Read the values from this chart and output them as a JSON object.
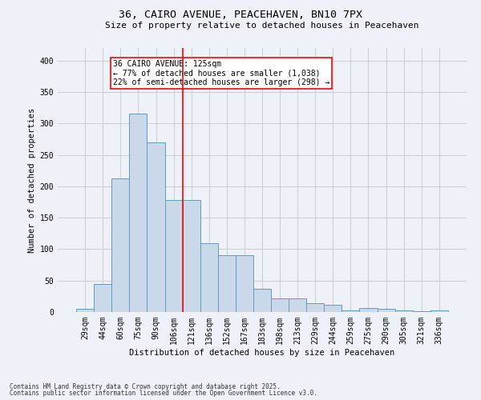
{
  "title_line1": "36, CAIRO AVENUE, PEACEHAVEN, BN10 7PX",
  "title_line2": "Size of property relative to detached houses in Peacehaven",
  "xlabel": "Distribution of detached houses by size in Peacehaven",
  "ylabel": "Number of detached properties",
  "categories": [
    "29sqm",
    "44sqm",
    "60sqm",
    "75sqm",
    "90sqm",
    "106sqm",
    "121sqm",
    "136sqm",
    "152sqm",
    "167sqm",
    "183sqm",
    "198sqm",
    "213sqm",
    "229sqm",
    "244sqm",
    "259sqm",
    "275sqm",
    "290sqm",
    "305sqm",
    "321sqm",
    "336sqm"
  ],
  "values": [
    5,
    44,
    212,
    315,
    270,
    178,
    178,
    110,
    90,
    90,
    37,
    22,
    22,
    14,
    11,
    3,
    6,
    5,
    2,
    1,
    3
  ],
  "bar_color": "#c9d9ea",
  "bar_edge_color": "#6699bb",
  "grid_color": "#cccccc",
  "background_color": "#eef2f8",
  "red_line_index": 6,
  "annotation_title": "36 CAIRO AVENUE: 125sqm",
  "annotation_line2": "← 77% of detached houses are smaller (1,038)",
  "annotation_line3": "22% of semi-detached houses are larger (298) →",
  "footnote_line1": "Contains HM Land Registry data © Crown copyright and database right 2025.",
  "footnote_line2": "Contains public sector information licensed under the Open Government Licence v3.0.",
  "ylim": [
    0,
    420
  ],
  "yticks": [
    0,
    50,
    100,
    150,
    200,
    250,
    300,
    350,
    400
  ],
  "title1_fontsize": 9.5,
  "title2_fontsize": 8,
  "tick_fontsize": 7,
  "ylabel_fontsize": 7.5,
  "xlabel_fontsize": 7.5,
  "annot_fontsize": 7,
  "footnote_fontsize": 5.5
}
